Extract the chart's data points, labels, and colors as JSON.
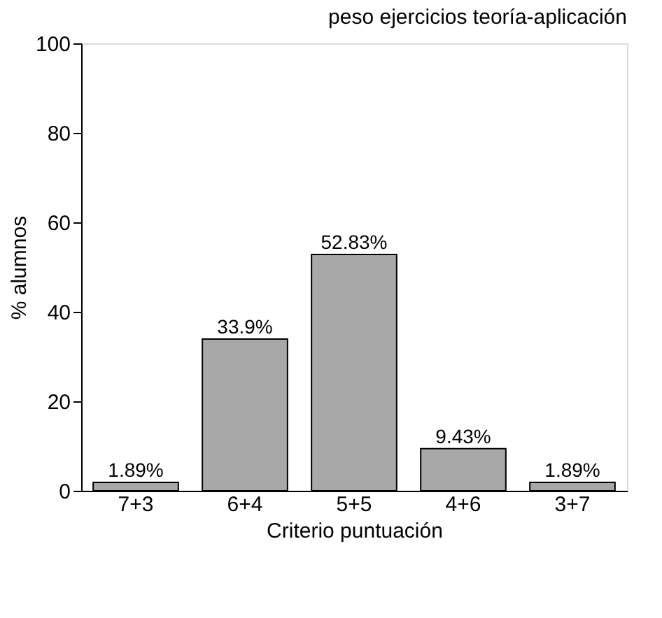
{
  "chart_data": {
    "type": "bar",
    "title": "peso ejercicios teoría-aplicación",
    "xlabel": "Criterio puntuación",
    "ylabel": "% alumnos",
    "categories": [
      "7+3",
      "6+4",
      "5+5",
      "4+6",
      "3+7"
    ],
    "values": [
      1.89,
      33.9,
      52.83,
      9.43,
      1.89
    ],
    "value_labels": [
      "1.89%",
      "33.9%",
      "52.83%",
      "9.43%",
      "1.89%"
    ],
    "color": "#a8a8a8",
    "ylim": [
      0,
      100
    ],
    "yticks": [
      0,
      20,
      40,
      60,
      80,
      100
    ],
    "grid": false
  }
}
